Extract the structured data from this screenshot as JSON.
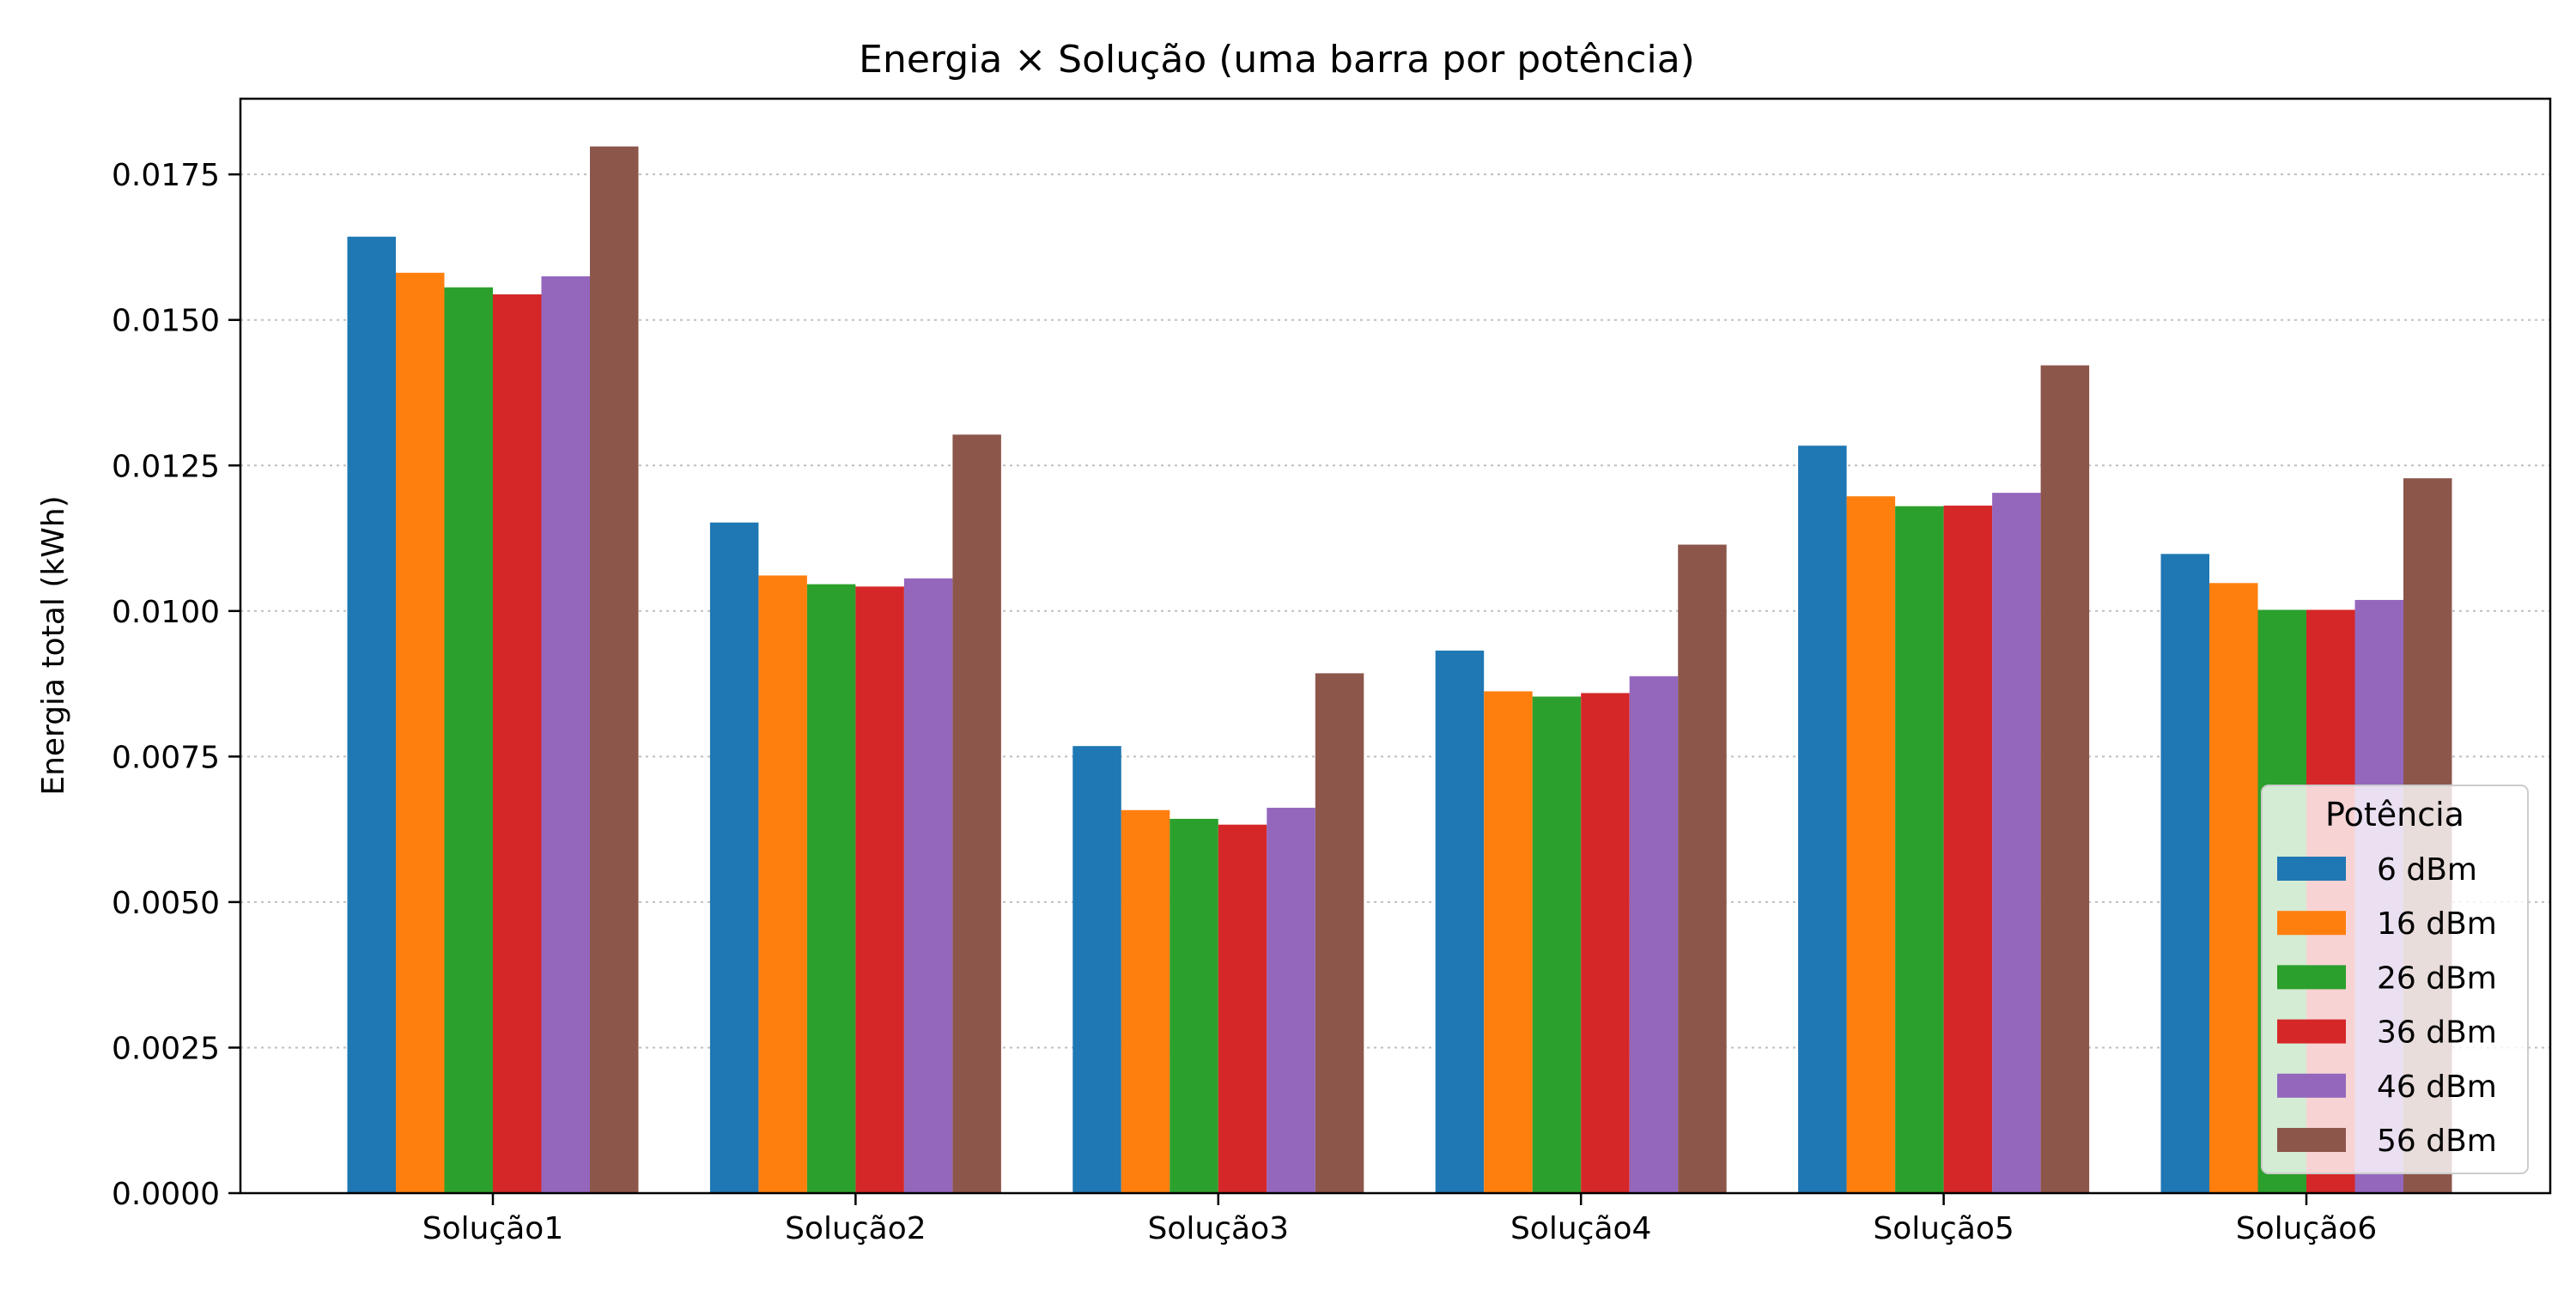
{
  "chart_data": {
    "type": "bar",
    "title": "Energia × Solução (uma barra por potência)",
    "xlabel": "",
    "ylabel": "Energia total (kWh)",
    "ylim": [
      0,
      0.0188
    ],
    "yticks": [
      "0.0000",
      "0.0025",
      "0.0050",
      "0.0075",
      "0.0100",
      "0.0125",
      "0.0150",
      "0.0175"
    ],
    "grid": "y-dotted",
    "categories": [
      "Solução1",
      "Solução2",
      "Solução3",
      "Solução4",
      "Solução5",
      "Solução6"
    ],
    "legend": {
      "title": "Potência",
      "placement": "lower-right"
    },
    "series": [
      {
        "name": "6 dBm",
        "color": "#1f77b4",
        "values": [
          0.01643,
          0.01152,
          0.00768,
          0.00932,
          0.01284,
          0.01098
        ]
      },
      {
        "name": "16 dBm",
        "color": "#ff7f0e",
        "values": [
          0.01581,
          0.01061,
          0.00658,
          0.00862,
          0.01197,
          0.01048
        ]
      },
      {
        "name": "26 dBm",
        "color": "#2ca02c",
        "values": [
          0.01556,
          0.01046,
          0.00643,
          0.00853,
          0.0118,
          0.01002
        ]
      },
      {
        "name": "36 dBm",
        "color": "#d62728",
        "values": [
          0.01544,
          0.01042,
          0.00633,
          0.00859,
          0.01181,
          0.01002
        ]
      },
      {
        "name": "46 dBm",
        "color": "#9467bd",
        "values": [
          0.01575,
          0.01056,
          0.00662,
          0.00888,
          0.01203,
          0.01019
        ]
      },
      {
        "name": "56 dBm",
        "color": "#8c564b",
        "values": [
          0.01798,
          0.01303,
          0.00893,
          0.01114,
          0.01422,
          0.01228
        ]
      }
    ]
  }
}
